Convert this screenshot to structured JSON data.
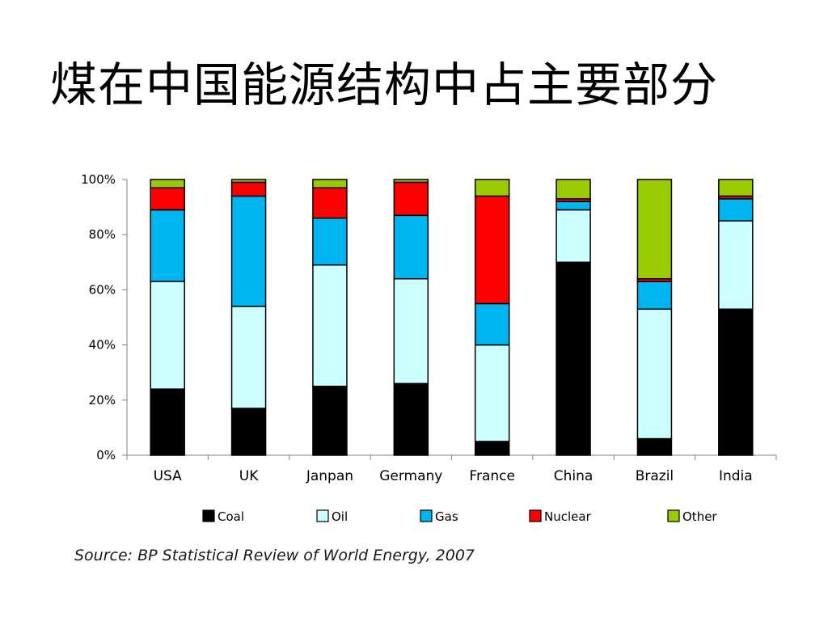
{
  "slide": {
    "title": "煤在中国能源结构中占主要部分",
    "source": "Source: BP Statistical Review of World Energy, 2007"
  },
  "chart_data": {
    "type": "bar",
    "stacked": true,
    "title": "",
    "xlabel": "",
    "ylabel": "",
    "ylim": [
      0,
      100
    ],
    "yticks": [
      "0%",
      "20%",
      "40%",
      "60%",
      "80%",
      "100%"
    ],
    "categories": [
      "USA",
      "UK",
      "Janpan",
      "Germany",
      "France",
      "China",
      "Brazil",
      "India"
    ],
    "series": [
      {
        "name": "Coal",
        "color": "#000000",
        "values": [
          24,
          17,
          25,
          26,
          5,
          70,
          6,
          53
        ]
      },
      {
        "name": "Oil",
        "color": "#ccffff",
        "values": [
          39,
          37,
          44,
          38,
          35,
          19,
          47,
          32
        ]
      },
      {
        "name": "Gas",
        "color": "#00b4f0",
        "values": [
          26,
          40,
          17,
          23,
          15,
          3,
          10,
          8
        ]
      },
      {
        "name": "Nuclear",
        "color": "#ff0000",
        "values": [
          8,
          5,
          11,
          12,
          39,
          1,
          1,
          1
        ]
      },
      {
        "name": "Other",
        "color": "#99cc00",
        "values": [
          3,
          1,
          3,
          1,
          6,
          7,
          36,
          6
        ]
      }
    ],
    "legend_position": "bottom",
    "grid": false
  }
}
